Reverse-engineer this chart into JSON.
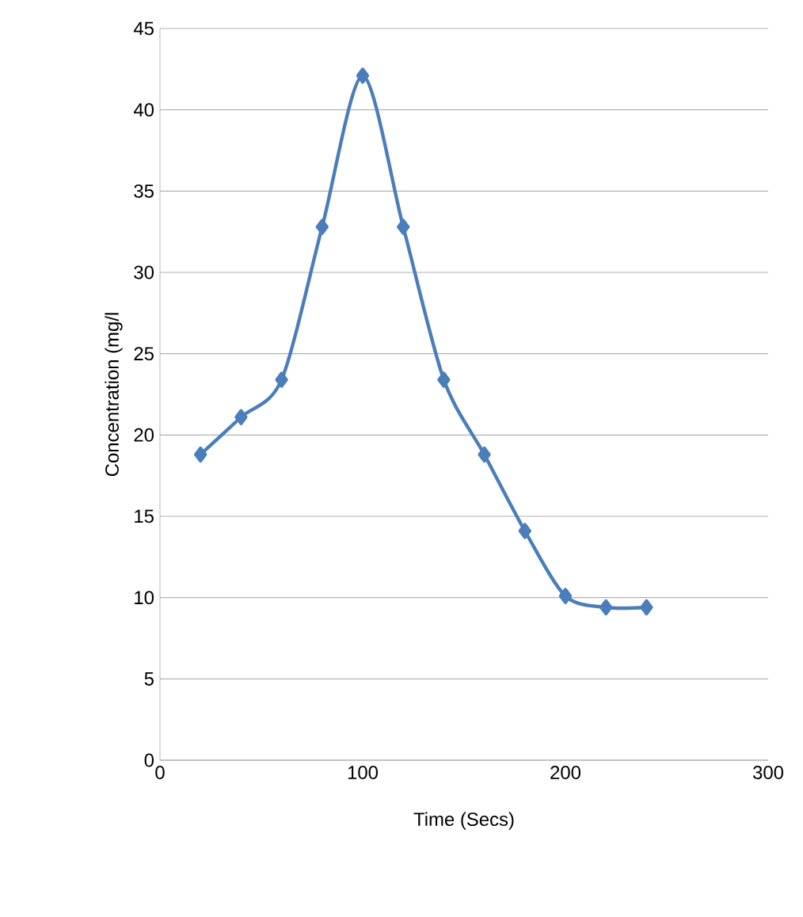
{
  "chart_data": {
    "type": "line",
    "xlabel": "Time  (Secs)",
    "ylabel": "Concentration (mg/l",
    "x": [
      20,
      40,
      60,
      80,
      100,
      120,
      140,
      160,
      180,
      200,
      220,
      240
    ],
    "series": [
      {
        "color": "#4a7ebb",
        "values": [
          18.8,
          21.1,
          23.4,
          32.8,
          42.1,
          32.8,
          23.4,
          18.8,
          14.1,
          10.1,
          9.4,
          9.4
        ]
      }
    ],
    "xlim": [
      0,
      300
    ],
    "xticks": [
      0,
      100,
      200,
      300
    ],
    "ylim": [
      0,
      45
    ],
    "yticks": [
      0,
      5,
      10,
      15,
      20,
      25,
      30,
      35,
      40,
      45
    ],
    "grid": "y",
    "marker": "diamond",
    "line_style": "solid"
  }
}
